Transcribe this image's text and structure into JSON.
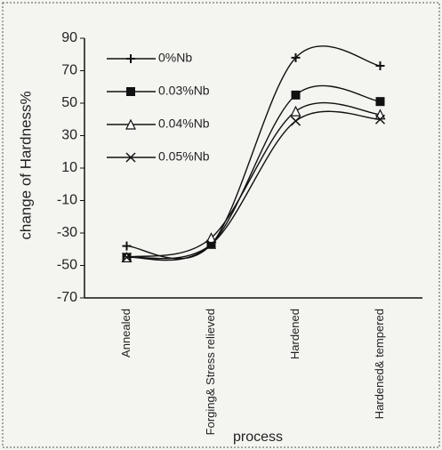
{
  "chart_data": {
    "type": "line",
    "y_label": "change of Hardness%",
    "x_label": "process",
    "categories": [
      "Annealed",
      "Forging& Stress relieved",
      "Hardened",
      "Hardened& tempered"
    ],
    "series": [
      {
        "name": "0%Nb",
        "color": "#111111",
        "marker": "plus",
        "values": [
          -38,
          -37,
          78,
          73
        ]
      },
      {
        "name": "0.03%Nb",
        "color": "#111111",
        "marker": "square",
        "values": [
          -45,
          -37,
          55,
          51
        ]
      },
      {
        "name": "0.04%Nb",
        "color": "#111111",
        "marker": "triangle",
        "values": [
          -45,
          -33,
          45,
          43
        ]
      },
      {
        "name": "0.05%Nb",
        "color": "#111111",
        "marker": "x",
        "values": [
          -45,
          -37,
          39,
          40
        ]
      }
    ],
    "ylim": [
      -70,
      90
    ],
    "yticks": [
      -70,
      -50,
      -30,
      -10,
      10,
      30,
      50,
      70,
      90
    ],
    "smooth": true
  }
}
